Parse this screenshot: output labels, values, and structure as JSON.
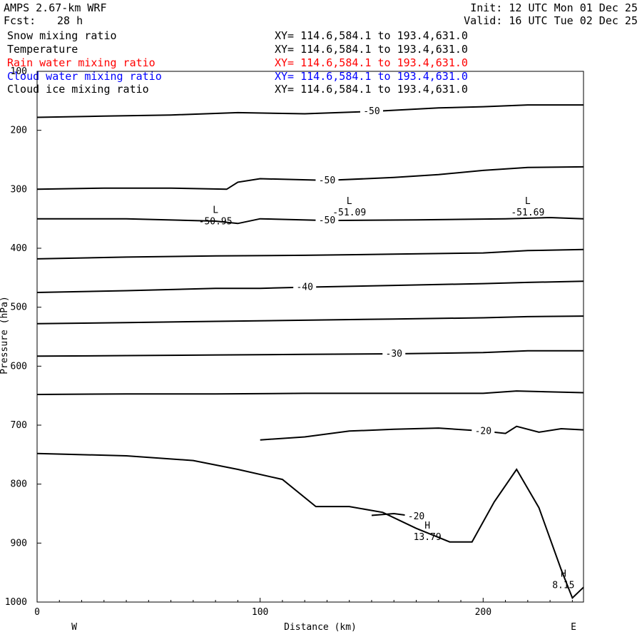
{
  "header": {
    "model": "AMPS 2.67-km WRF",
    "fcst_label": "Fcst:",
    "fcst_value": "28 h",
    "init": "Init: 12 UTC Mon 01 Dec 25",
    "valid": "Valid: 16 UTC Tue 02 Dec 25"
  },
  "fields": [
    {
      "name": "Snow mixing ratio",
      "xy": "XY= 114.6,584.1 to 193.4,631.0",
      "color": "#000000"
    },
    {
      "name": "Temperature",
      "xy": "XY= 114.6,584.1 to 193.4,631.0",
      "color": "#000000"
    },
    {
      "name": "Rain water mixing ratio",
      "xy": "XY= 114.6,584.1 to 193.4,631.0",
      "color": "#ff0000"
    },
    {
      "name": "Cloud water mixing ratio",
      "xy": "XY= 114.6,584.1 to 193.4,631.0",
      "color": "#0000ff"
    },
    {
      "name": "Cloud ice mixing ratio",
      "xy": "XY= 114.6,584.1 to 193.4,631.0",
      "color": "#000000"
    }
  ],
  "chart_data": {
    "type": "contour",
    "xlabel": "Distance (km)",
    "ylabel": "Pressure (hPa)",
    "x_ticks": [
      0,
      100,
      200
    ],
    "y_ticks": [
      100,
      200,
      300,
      400,
      500,
      600,
      700,
      800,
      900,
      1000
    ],
    "xlim": [
      0,
      245
    ],
    "ylim": [
      1000,
      100
    ],
    "left_end_label": "W",
    "right_end_label": "E",
    "isotherms": [
      {
        "label": "-50",
        "points": [
          [
            0,
            178
          ],
          [
            30,
            176
          ],
          [
            60,
            174
          ],
          [
            90,
            170
          ],
          [
            120,
            172
          ],
          [
            150,
            168
          ],
          [
            180,
            162
          ],
          [
            200,
            160
          ],
          [
            220,
            157
          ],
          [
            245,
            157
          ]
        ]
      },
      {
        "label": "-50",
        "points": [
          [
            0,
            300
          ],
          [
            30,
            298
          ],
          [
            60,
            298
          ],
          [
            85,
            300
          ],
          [
            90,
            288
          ],
          [
            100,
            282
          ],
          [
            130,
            285
          ],
          [
            160,
            280
          ],
          [
            180,
            275
          ],
          [
            200,
            268
          ],
          [
            220,
            263
          ],
          [
            245,
            262
          ]
        ]
      },
      {
        "label": "-50",
        "points": [
          [
            0,
            350
          ],
          [
            40,
            350
          ],
          [
            80,
            354
          ],
          [
            90,
            358
          ],
          [
            100,
            350
          ],
          [
            130,
            353
          ],
          [
            170,
            352
          ],
          [
            210,
            350
          ],
          [
            230,
            348
          ],
          [
            245,
            350
          ]
        ]
      },
      {
        "label": "",
        "points": [
          [
            0,
            418
          ],
          [
            40,
            415
          ],
          [
            80,
            413
          ],
          [
            120,
            412
          ],
          [
            160,
            410
          ],
          [
            200,
            408
          ],
          [
            220,
            404
          ],
          [
            245,
            402
          ]
        ]
      },
      {
        "label": "-40",
        "points": [
          [
            0,
            475
          ],
          [
            40,
            472
          ],
          [
            80,
            468
          ],
          [
            100,
            468
          ],
          [
            120,
            466
          ],
          [
            160,
            463
          ],
          [
            200,
            460
          ],
          [
            220,
            458
          ],
          [
            245,
            456
          ]
        ]
      },
      {
        "label": "",
        "points": [
          [
            0,
            528
          ],
          [
            40,
            526
          ],
          [
            80,
            524
          ],
          [
            120,
            522
          ],
          [
            160,
            520
          ],
          [
            200,
            518
          ],
          [
            220,
            516
          ],
          [
            245,
            515
          ]
        ]
      },
      {
        "label": "-30",
        "points": [
          [
            0,
            583
          ],
          [
            40,
            582
          ],
          [
            80,
            581
          ],
          [
            120,
            580
          ],
          [
            160,
            579
          ],
          [
            200,
            577
          ],
          [
            220,
            574
          ],
          [
            245,
            574
          ]
        ]
      },
      {
        "label": "",
        "points": [
          [
            0,
            648
          ],
          [
            40,
            647
          ],
          [
            80,
            647
          ],
          [
            120,
            646
          ],
          [
            160,
            646
          ],
          [
            200,
            646
          ],
          [
            215,
            642
          ],
          [
            245,
            645
          ]
        ]
      },
      {
        "label": "-20",
        "points": [
          [
            100,
            725
          ],
          [
            120,
            720
          ],
          [
            140,
            710
          ],
          [
            160,
            707
          ],
          [
            180,
            705
          ],
          [
            200,
            710
          ],
          [
            210,
            714
          ],
          [
            215,
            702
          ],
          [
            225,
            712
          ],
          [
            235,
            706
          ],
          [
            245,
            708
          ]
        ]
      },
      {
        "label": "-20",
        "points": [
          [
            150,
            853
          ],
          [
            160,
            850
          ],
          [
            170,
            855
          ],
          [
            175,
            850
          ]
        ]
      }
    ],
    "terrain": {
      "label": "terrain surface",
      "points": [
        [
          0,
          748
        ],
        [
          40,
          752
        ],
        [
          70,
          760
        ],
        [
          90,
          775
        ],
        [
          110,
          792
        ],
        [
          125,
          838
        ],
        [
          140,
          838
        ],
        [
          155,
          848
        ],
        [
          170,
          875
        ],
        [
          185,
          898
        ],
        [
          195,
          898
        ],
        [
          205,
          830
        ],
        [
          215,
          775
        ],
        [
          225,
          840
        ],
        [
          235,
          945
        ],
        [
          240,
          993
        ],
        [
          245,
          975
        ]
      ]
    },
    "extrema": [
      {
        "type": "L",
        "value": "-50.95",
        "x": 80,
        "p": 345
      },
      {
        "type": "L",
        "value": "-51.09",
        "x": 140,
        "p": 330
      },
      {
        "type": "L",
        "value": "-51.69",
        "x": 220,
        "p": 330
      },
      {
        "type": "H",
        "value": "13.79",
        "x": 175,
        "p": 880
      },
      {
        "type": "H",
        "value": "8.15",
        "x": 236,
        "p": 962
      }
    ]
  }
}
